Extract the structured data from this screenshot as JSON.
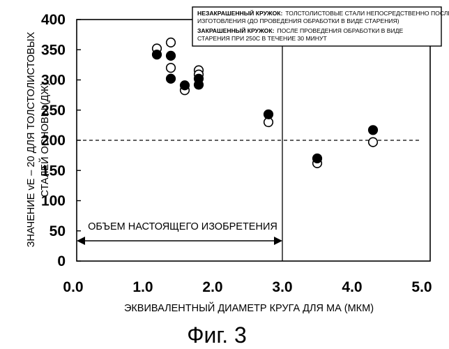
{
  "chart_data": {
    "type": "scatter",
    "xlabel": "ЭКВИВАЛЕНТНЫЙ ДИАМЕТР КРУГА ДЛЯ МА (МКМ)",
    "ylabel_lines": [
      "ЗНАЧЕНИЕ vE – 20 ДЛЯ ТОЛСТОЛИСТОВЫХ",
      "СТАЛЕЙ ОСНОВЫ (ДЖ)"
    ],
    "xlim": [
      0,
      5
    ],
    "ylim": [
      0,
      400
    ],
    "x_ticks": [
      "0.0",
      "1.0",
      "2.0",
      "3.0",
      "4.0",
      "5.0"
    ],
    "y_ticks": [
      "0",
      "50",
      "100",
      "150",
      "200",
      "250",
      "300",
      "350",
      "400"
    ],
    "grid": false,
    "threshold_line": {
      "y": 200,
      "style": "dashed"
    },
    "divider_line": {
      "x": 3.0
    },
    "scope_annotation": {
      "text": "ОБЪЕМ НАСТОЯЩЕГО ИЗОБРЕТЕНИЯ",
      "x_range": [
        0,
        3.0
      ]
    },
    "legend": {
      "placement": "top-right",
      "entries": [
        {
          "marker": "open-circle",
          "bold_label": "НЕЗАКРАШЕННЫЙ КРУЖОК:",
          "lines": [
            "ТОЛСТОЛИСТОВЫЕ СТАЛИ НЕПОСРЕДСТВЕННО ПОСЛЕ",
            "ИЗГОТОВЛЕНИЯ (ДО ПРОВЕДЕНИЯ ОБРАБОТКИ В ВИДЕ СТАРЕНИЯ)"
          ]
        },
        {
          "marker": "filled-circle",
          "bold_label": "ЗАКРАШЕННЫЙ КРУЖОК:",
          "lines": [
            "ПОСЛЕ ПРОВЕДЕНИЯ ОБРАБОТКИ В ВИДЕ",
            "СТАРЕНИЯ ПРИ 250С В ТЕЧЕНИЕ 30 МИНУТ"
          ]
        }
      ]
    },
    "series": [
      {
        "marker": "open-circle",
        "points": [
          {
            "x": 1.2,
            "y": 352
          },
          {
            "x": 1.4,
            "y": 362
          },
          {
            "x": 1.4,
            "y": 320
          },
          {
            "x": 1.6,
            "y": 283
          },
          {
            "x": 1.8,
            "y": 316
          },
          {
            "x": 1.8,
            "y": 309
          },
          {
            "x": 2.8,
            "y": 230
          },
          {
            "x": 3.5,
            "y": 162
          },
          {
            "x": 4.3,
            "y": 197
          }
        ]
      },
      {
        "marker": "filled-circle",
        "points": [
          {
            "x": 1.2,
            "y": 342
          },
          {
            "x": 1.4,
            "y": 340
          },
          {
            "x": 1.4,
            "y": 302
          },
          {
            "x": 1.6,
            "y": 291
          },
          {
            "x": 1.8,
            "y": 302
          },
          {
            "x": 1.8,
            "y": 292
          },
          {
            "x": 2.8,
            "y": 243
          },
          {
            "x": 3.5,
            "y": 170
          },
          {
            "x": 4.3,
            "y": 217
          }
        ]
      }
    ]
  },
  "figure_caption": "Фиг. 3"
}
